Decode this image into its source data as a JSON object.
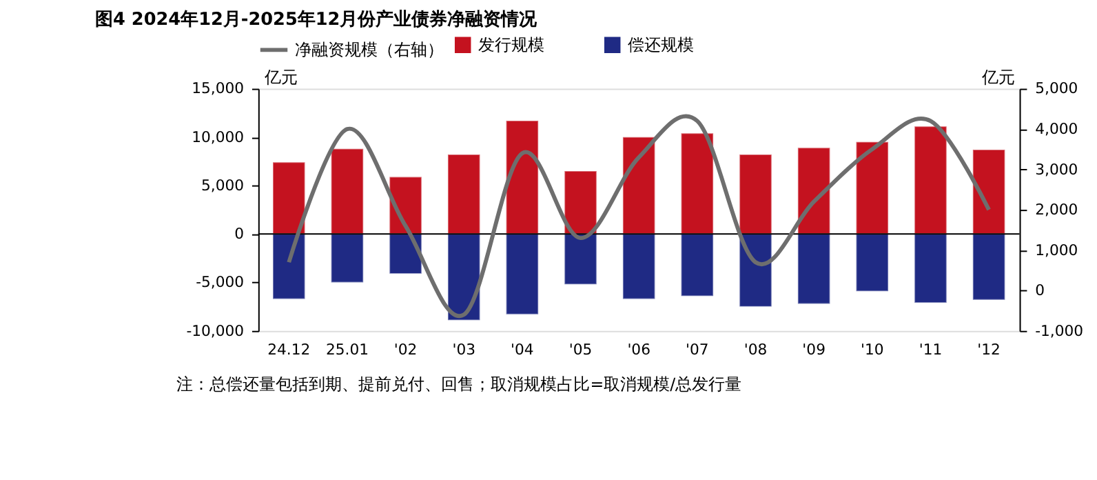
{
  "chart_data": {
    "type": "bar",
    "title": "图4  2024年12月-2025年12月份产业债券净融资情况",
    "categories": [
      "24.12",
      "25.01",
      "'02",
      "'03",
      "'04",
      "'05",
      "'06",
      "'07",
      "'08",
      "'09",
      "'10",
      "'11",
      "'12"
    ],
    "stacked": true,
    "series": [
      {
        "name": "发行规模",
        "color": "#c4121f",
        "values": [
          7400,
          8800,
          5900,
          8200,
          11700,
          6500,
          10000,
          10400,
          8200,
          8900,
          9500,
          11100,
          8700
        ]
      },
      {
        "name": "偿还规模",
        "color": "#1f2a84",
        "values": [
          -6700,
          -5000,
          -4100,
          -8900,
          -8300,
          -5200,
          -6700,
          -6400,
          -7500,
          -7200,
          -5900,
          -7100,
          -6800
        ]
      },
      {
        "name": "净融资规模（右轴）",
        "type": "line",
        "axis": "y2",
        "color": "#6e6e6e",
        "values": [
          700,
          4000,
          1600,
          -600,
          3400,
          1300,
          3300,
          4200,
          700,
          2200,
          3500,
          4200,
          2000
        ]
      }
    ],
    "ylabel": "亿元",
    "y2label": "亿元",
    "ylim": [
      -10000,
      15000
    ],
    "yticks": [
      {
        "value": -10000,
        "label": "-10,000"
      },
      {
        "value": -5000,
        "label": "-5,000"
      },
      0,
      {
        "value": 5000,
        "label": "5,000"
      },
      {
        "value": 10000,
        "label": "10,000"
      },
      {
        "value": 15000,
        "label": "15,000"
      }
    ],
    "y2lim": [
      -1000,
      5000
    ],
    "y2ticks": [
      {
        "value": -1000,
        "label": "-1,000"
      },
      0,
      {
        "value": 1000,
        "label": "1,000"
      },
      {
        "value": 2000,
        "label": "2,000"
      },
      {
        "value": 3000,
        "label": "3,000"
      },
      {
        "value": 4000,
        "label": "4,000"
      },
      {
        "value": 5000,
        "label": "5,000"
      }
    ],
    "ref_lines": [
      {
        "axis": "y",
        "value": 0,
        "color": "#000000"
      }
    ],
    "grid": false,
    "legend": "top",
    "marker": "none",
    "line_style": "solid",
    "annotations": [
      "注：总偿还量包括到期、提前兑付、回售；取消规模占比=取消规模/总发行量"
    ]
  }
}
